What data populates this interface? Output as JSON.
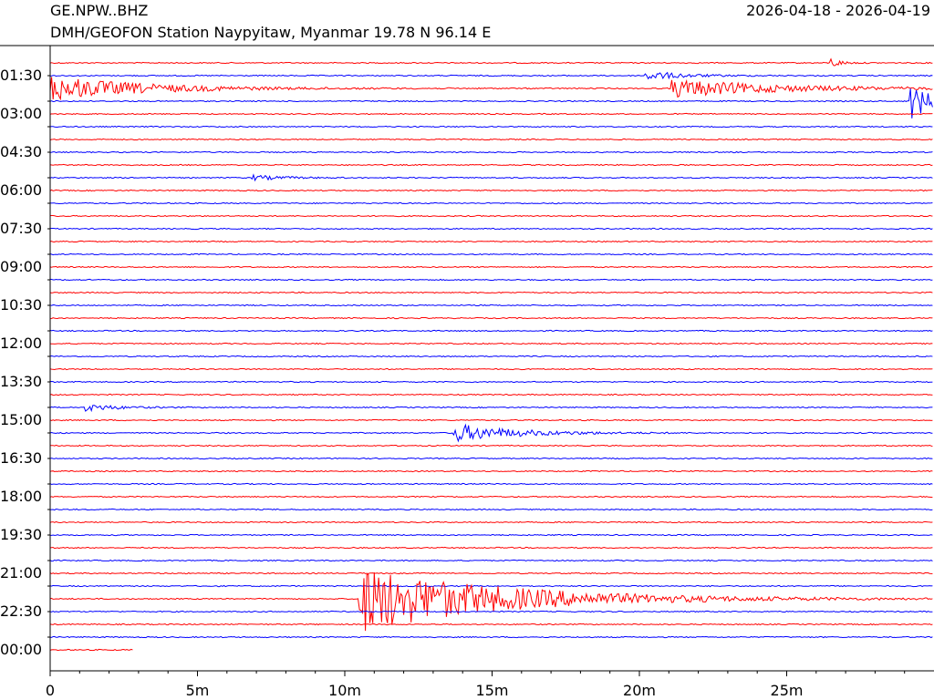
{
  "header": {
    "station_code": "GE.NPW..BHZ",
    "station_description": "DMH/GEOFON Station Naypyitaw, Myanmar  19.78 N 96.14 E",
    "date_range": "2026-04-18 - 2026-04-19"
  },
  "chart_data": {
    "type": "line",
    "title": "GE.NPW..BHZ",
    "subtitle": "DMH/GEOFON Station Naypyitaw, Myanmar  19.78 N 96.14 E",
    "date_range": "2026-04-18 - 2026-04-19",
    "xlabel": "",
    "ylabel": "",
    "x_unit": "minutes",
    "xlim": [
      0,
      30
    ],
    "x_ticks": [
      0,
      5,
      10,
      15,
      20,
      25
    ],
    "x_tick_labels": [
      "0",
      "5m",
      "10m",
      "15m",
      "20m",
      "25m"
    ],
    "row_count": 47,
    "row_colors": [
      "#ff0000",
      "#0000ff"
    ],
    "y_tick_rows": [
      2,
      4,
      6,
      8,
      10,
      12,
      14,
      16,
      18,
      20,
      22,
      24,
      26,
      28,
      30,
      32,
      34,
      36,
      38,
      40,
      42,
      44,
      46
    ],
    "y_tick_labels": [
      "01:30",
      "03:00",
      "04:30",
      "06:00",
      "07:30",
      "09:00",
      "10:30",
      "12:00",
      "13:30",
      "15:00",
      "16:30",
      "18:00",
      "19:30",
      "21:00",
      "22:30",
      "00:00"
    ],
    "y_labeled_rows": [
      2,
      5,
      8,
      11,
      14,
      17,
      20,
      23,
      26,
      29,
      32,
      35,
      38,
      41,
      44,
      47
    ],
    "last_row_end_minute": 2.8,
    "events": [
      {
        "row": 1,
        "minute": 26.5,
        "amplitude": 6,
        "decay_minutes": 0.3
      },
      {
        "row": 2,
        "minute": 20.2,
        "amplitude": 5,
        "decay_minutes": 1.2
      },
      {
        "row": 3,
        "minute": 0.0,
        "amplitude": 14,
        "decay_minutes": 3.0
      },
      {
        "row": 3,
        "minute": 21.1,
        "amplitude": 10,
        "decay_minutes": 3.5
      },
      {
        "row": 4,
        "minute": 29.2,
        "amplitude": 20,
        "decay_minutes": 0.8
      },
      {
        "row": 10,
        "minute": 6.8,
        "amplitude": 3,
        "decay_minutes": 1.0
      },
      {
        "row": 28,
        "minute": 1.2,
        "amplitude": 4,
        "decay_minutes": 1.0
      },
      {
        "row": 30,
        "minute": 13.7,
        "amplitude": 10,
        "decay_minutes": 2.0
      },
      {
        "row": 43,
        "minute": 10.5,
        "amplitude": 38,
        "decay_minutes": 4.5
      }
    ]
  }
}
